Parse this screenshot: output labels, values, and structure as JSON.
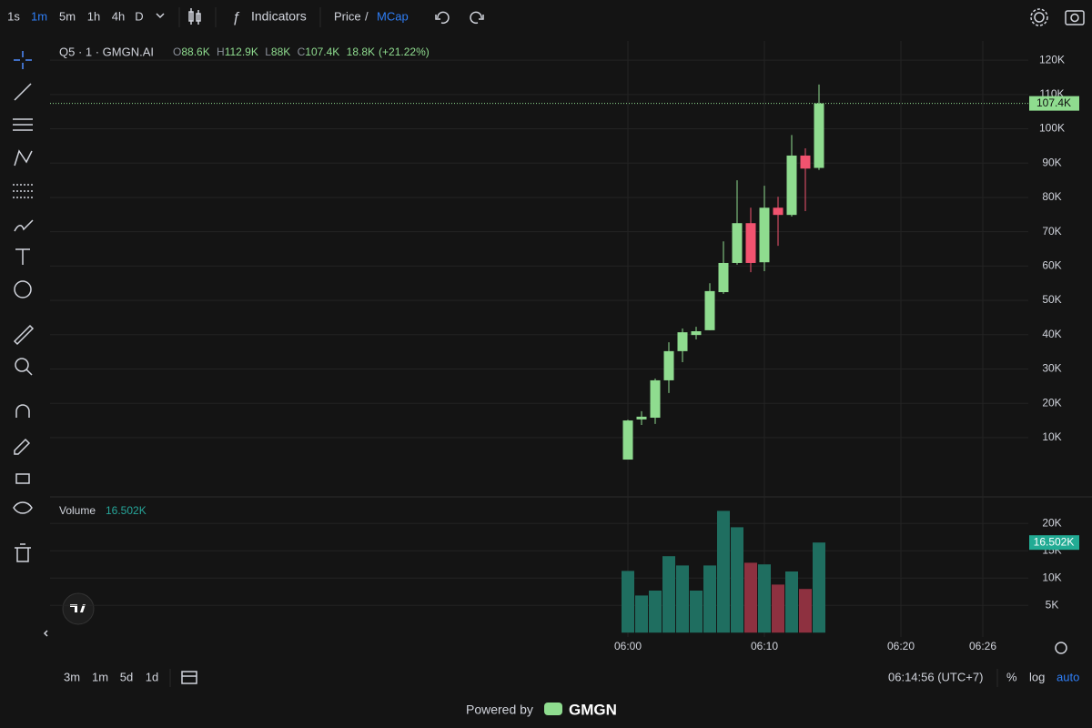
{
  "toolbar": {
    "intervals": [
      "1s",
      "1m",
      "5m",
      "1h",
      "4h",
      "D"
    ],
    "indicators": "Indicators",
    "price": "Price",
    "separator": "/",
    "mcap": "MCap"
  },
  "header": {
    "symbol": "Q5 · 1 · GMGN.AI",
    "o": "O",
    "open": "88.6K",
    "h": "H",
    "high": "112.9K",
    "l": "L",
    "low": "88K",
    "c": "C",
    "close": "107.4K",
    "change": "18.8K",
    "change_pct": "(+21.22%)"
  },
  "chart_data": [
    {
      "type": "candlestick",
      "up_color": "#8fdc8f",
      "down_color": "#f2536f",
      "x": [
        "06:00",
        "06:01",
        "06:02",
        "06:03",
        "06:04",
        "06:05",
        "06:06",
        "06:07",
        "06:08",
        "06:09",
        "06:10",
        "06:11",
        "06:12",
        "06:13",
        "06:14"
      ],
      "open": [
        3600,
        15300,
        15800,
        26700,
        35200,
        39900,
        41300,
        52400,
        60900,
        72500,
        61100,
        77000,
        74900,
        92200,
        88600
      ],
      "high": [
        15200,
        17700,
        27200,
        37800,
        41800,
        42300,
        55000,
        67200,
        85000,
        77000,
        83400,
        80200,
        98200,
        94300,
        112900
      ],
      "low": [
        3600,
        13700,
        14000,
        23000,
        32000,
        38600,
        41300,
        51900,
        60400,
        58200,
        58500,
        65900,
        74400,
        76000,
        88000
      ],
      "close": [
        15000,
        16100,
        26700,
        35200,
        40700,
        41000,
        52700,
        60900,
        72500,
        60900,
        77000,
        74900,
        92200,
        88400,
        107400
      ],
      "xlim": [
        "05:17",
        "06:29"
      ],
      "xticks": [
        "06:00",
        "06:10",
        "06:20",
        "06:26"
      ],
      "ylim": [
        -7000,
        125600
      ],
      "yticks": [
        {
          "value": 10000,
          "label": "10K"
        },
        {
          "value": 20000,
          "label": "20K"
        },
        {
          "value": 30000,
          "label": "30K"
        },
        {
          "value": 40000,
          "label": "40K"
        },
        {
          "value": 50000,
          "label": "50K"
        },
        {
          "value": 60000,
          "label": "60K"
        },
        {
          "value": 70000,
          "label": "70K"
        },
        {
          "value": 80000,
          "label": "80K"
        },
        {
          "value": 90000,
          "label": "90K"
        },
        {
          "value": 100000,
          "label": "100K"
        },
        {
          "value": 110000,
          "label": "110K"
        },
        {
          "value": 120000,
          "label": "120K"
        }
      ],
      "grid": true
    },
    {
      "type": "bar",
      "title": "Volume",
      "legend_value": "16.502K",
      "x": [
        "06:00",
        "06:01",
        "06:02",
        "06:03",
        "06:04",
        "06:05",
        "06:06",
        "06:07",
        "06:08",
        "06:09",
        "06:10",
        "06:11",
        "06:12",
        "06:13",
        "06:14"
      ],
      "values": [
        11300,
        6800,
        7700,
        14000,
        12300,
        7700,
        12300,
        22300,
        19300,
        12800,
        12500,
        8800,
        11200,
        8000,
        16502
      ],
      "colors": [
        "#1f6e60",
        "#1f6e60",
        "#1f6e60",
        "#1f6e60",
        "#1f6e60",
        "#1f6e60",
        "#1f6e60",
        "#1f6e60",
        "#1f6e60",
        "#8e3140",
        "#1f6e60",
        "#8e3140",
        "#1f6e60",
        "#8e3140",
        "#1f6e60"
      ],
      "xlim": [
        "05:17",
        "06:29"
      ],
      "ylim": [
        -800,
        24700
      ],
      "yticks": [
        {
          "value": 5000,
          "label": "5K"
        },
        {
          "value": 10000,
          "label": "10K"
        },
        {
          "value": 15000,
          "label": "15K"
        },
        {
          "value": 20000,
          "label": "20K"
        }
      ],
      "grid": true
    }
  ],
  "bottom_bar": {
    "ranges": [
      "3m",
      "1m",
      "5d",
      "1d"
    ],
    "clock": "06:14:56 (UTC+7)",
    "percent": "%",
    "log": "log",
    "auto": "auto"
  },
  "footer": {
    "powered": "Powered by",
    "brand": "GMGN"
  }
}
